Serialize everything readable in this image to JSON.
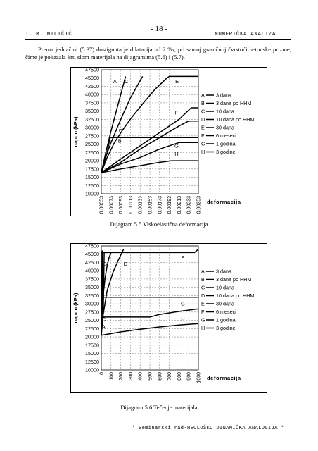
{
  "header": {
    "page_number": "- 18 -",
    "author": "I. M. MILIČIĆ",
    "section": "NUMERIČKA ANALIZA"
  },
  "paragraph": "Prema jednačini (5.37) dostignuta je dilatacija od 2 ‰, pri samoj graničnoj čvrstoći betonske prizme, čime je pokazala krti slom materijala na dijagramima (5.6) i (5.7).",
  "captions": {
    "fig1": "Dijagram 5.5 Viskoelastična deformacija",
    "fig2": "Dijagram 5.6 Tečenje materijala"
  },
  "footer": "* Seminarski rad-REOLOŠKO DINAMIČKA ANALOGIJA *",
  "colors": {
    "line": "#000000",
    "grid": "#555555",
    "frame": "#000000"
  },
  "chart_data": [
    {
      "type": "line",
      "title": "",
      "ylabel": "napon (kPa)",
      "xlabel": "deformacija",
      "ylim": [
        10000,
        47500
      ],
      "yticks": [
        "47500",
        "45000",
        "42500",
        "40000",
        "37500",
        "35000",
        "32500",
        "30000",
        "27500",
        "25000",
        "22500",
        "20000",
        "17500",
        "15000",
        "12500",
        "10000"
      ],
      "xticks": [
        "0.00053",
        "0.00073",
        "0.00093",
        "0.00113",
        "0.00133",
        "0.00153",
        "0.00173",
        "0.00193",
        "0.00213",
        "0.00233",
        "0.00253"
      ],
      "xlim": [
        0.00053,
        0.00253
      ],
      "grid": true,
      "legend_position": "right",
      "legend": [
        "3 dana",
        "3 dana po HHM",
        "10 dana",
        "10 dana po HHM",
        "30 dana",
        "6 meseci",
        "1 godina",
        "3 godine"
      ],
      "series": [
        {
          "name": "3 dana",
          "label": "A",
          "x": [
            0.00053,
            0.00063,
            0.00073,
            0.00083,
            0.00093,
            0.00103
          ],
          "y": [
            16400,
            23000,
            29000,
            34500,
            40000,
            45500
          ]
        },
        {
          "name": "3 dana po HHM",
          "label": "B",
          "x": [
            0.00053,
            0.00063,
            0.00073,
            0.00093,
            0.00113,
            0.00138
          ],
          "y": [
            16400,
            21500,
            25500,
            32500,
            39000,
            45500
          ]
        },
        {
          "name": "10 dana",
          "label": "C",
          "x": [
            0.00053,
            0.00065,
            0.0008,
            0.00098,
            0.00115,
            0.0014,
            0.00163,
            0.00188,
            0.00193,
            0.00253
          ],
          "y": [
            16400,
            21000,
            25500,
            29500,
            33000,
            37500,
            41500,
            45000,
            45500,
            45500
          ]
        },
        {
          "name": "10 dana po HHM",
          "label": "D",
          "x": [
            0.00053,
            0.00065,
            0.00071,
            0.00253
          ],
          "y": [
            16400,
            22500,
            27000,
            27000
          ]
        },
        {
          "name": "30 dana",
          "label": "E",
          "x": [
            0.00053,
            0.00093,
            0.00133,
            0.00173,
            0.00213,
            0.00238,
            0.00253
          ],
          "y": [
            16400,
            20500,
            24500,
            28500,
            32500,
            36000,
            36000
          ]
        },
        {
          "name": "6 meseci",
          "label": "F",
          "x": [
            0.00053,
            0.00093,
            0.00133,
            0.00173,
            0.00213,
            0.00233,
            0.00253
          ],
          "y": [
            16400,
            19500,
            23500,
            27000,
            30500,
            32000,
            32000
          ]
        },
        {
          "name": "1 godina",
          "label": "G",
          "x": [
            0.00053,
            0.00093,
            0.00133,
            0.00173,
            0.00213,
            0.00253
          ],
          "y": [
            16400,
            19000,
            21000,
            23500,
            25500,
            25500
          ]
        },
        {
          "name": "3 godine",
          "label": "H",
          "x": [
            0.00053,
            0.00093,
            0.00133,
            0.00173,
            0.00198,
            0.00253
          ],
          "y": [
            16400,
            17500,
            18500,
            19500,
            20000,
            20000
          ]
        }
      ],
      "markers": [
        {
          "label": "A",
          "x": 0.00081,
          "y": 43500
        },
        {
          "label": "C",
          "x": 0.00105,
          "y": 43500
        },
        {
          "label": "E",
          "x": 0.00209,
          "y": 43500
        },
        {
          "label": "D",
          "x": 0.00093,
          "y": 28500
        },
        {
          "label": "B",
          "x": 0.00091,
          "y": 25500
        },
        {
          "label": "F",
          "x": 0.00208,
          "y": 34000
        },
        {
          "label": "G",
          "x": 0.00208,
          "y": 24000
        },
        {
          "label": "H",
          "x": 0.00208,
          "y": 21500
        }
      ]
    },
    {
      "type": "line",
      "title": "",
      "ylabel": "napon (kPa)",
      "xlabel": "deformacija",
      "ylim": [
        10000,
        47500
      ],
      "yticks": [
        "47500",
        "45000",
        "42500",
        "40000",
        "37500",
        "35000",
        "32500",
        "30000",
        "27500",
        "25000",
        "22500",
        "20000",
        "17500",
        "15000",
        "12500",
        "10000"
      ],
      "xticks": [
        "0",
        "100",
        "200",
        "300",
        "400",
        "500",
        "600",
        "700",
        "800",
        "900",
        "1000"
      ],
      "xlim": [
        0,
        1000
      ],
      "grid": true,
      "legend_position": "right",
      "legend": [
        "3 dana",
        "3 dana po HHM",
        "10 dana",
        "10 dana po HHM",
        "30 dana",
        "6 meseci",
        "1 godina",
        "3 godine"
      ],
      "series": [
        {
          "name": "3 dana",
          "label": "A",
          "x": [
            0,
            5,
            20,
            40,
            60,
            80,
            100
          ],
          "y": [
            20500,
            25000,
            33000,
            38000,
            41500,
            44000,
            45500
          ]
        },
        {
          "name": "3 dana po HHM",
          "label": "B",
          "x": [
            8,
            10,
            12,
            14,
            16
          ],
          "y": [
            27000,
            46000,
            27000,
            46000,
            46000
          ]
        },
        {
          "name": "10 dana",
          "label": "C",
          "x": [
            0,
            20,
            60,
            120,
            180,
            230
          ],
          "y": [
            20500,
            27000,
            34000,
            39500,
            43500,
            46500
          ]
        },
        {
          "name": "10 dana po HHM",
          "label": "D",
          "x": [
            0,
            10,
            20,
            30,
            40
          ],
          "y": [
            27000,
            45500,
            27000,
            45500,
            45500
          ]
        },
        {
          "name": "30 dana",
          "label": "E",
          "x": [
            0,
            200,
            400,
            600,
            800,
            960,
            980,
            1000
          ],
          "y": [
            45500,
            45500,
            45500,
            45500,
            45500,
            45500,
            46000,
            46500
          ]
        },
        {
          "name": "6 meseci",
          "label": "F",
          "x": [
            0,
            200,
            400,
            600,
            800,
            1000
          ],
          "y": [
            32000,
            32000,
            32000,
            32000,
            32000,
            32000
          ]
        },
        {
          "name": "1 godina",
          "label": "G",
          "x": [
            0,
            250,
            500,
            600,
            800,
            1000
          ],
          "y": [
            26000,
            26000,
            26000,
            26800,
            27700,
            28500
          ]
        },
        {
          "name": "3 godine",
          "label": "H",
          "x": [
            0,
            200,
            400,
            600,
            800,
            1000
          ],
          "y": [
            20500,
            21500,
            22300,
            23000,
            23600,
            24000
          ]
        }
      ],
      "markers": [
        {
          "label": "B",
          "x": 40,
          "y": 41500
        },
        {
          "label": "D",
          "x": 250,
          "y": 41500
        },
        {
          "label": "E",
          "x": 840,
          "y": 43500
        },
        {
          "label": "F",
          "x": 840,
          "y": 33800
        },
        {
          "label": "G",
          "x": 840,
          "y": 29500
        },
        {
          "label": "H",
          "x": 840,
          "y": 24800
        },
        {
          "label": "C",
          "x": 25,
          "y": 24800
        },
        {
          "label": "A",
          "x": 25,
          "y": 22500
        }
      ]
    }
  ]
}
